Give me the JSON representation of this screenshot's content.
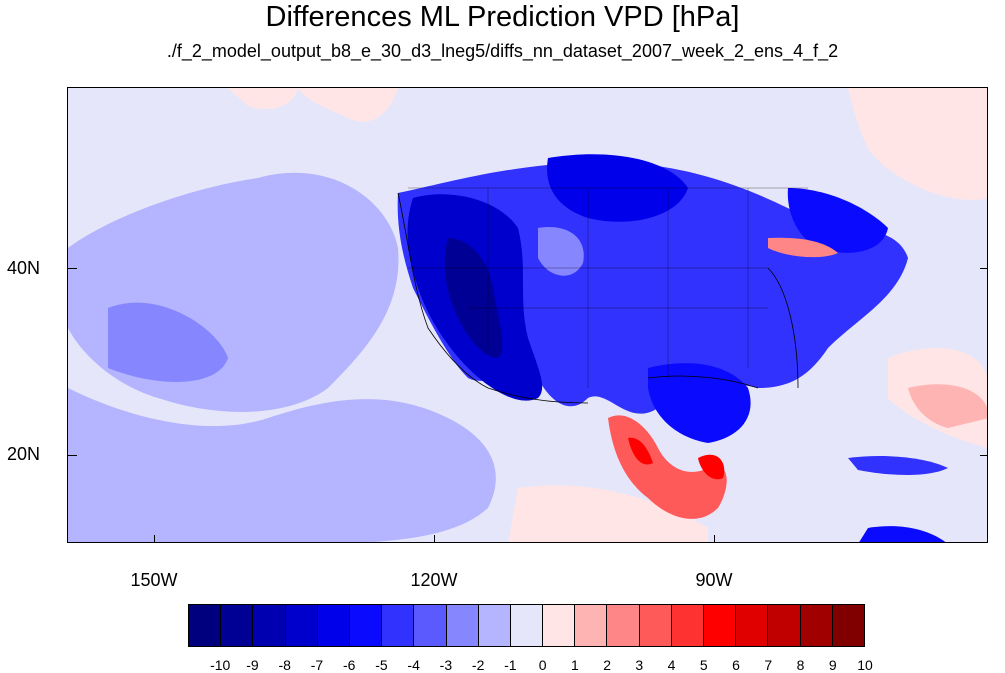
{
  "title": "Differences ML Prediction VPD [hPa]",
  "subtitle": "./f_2_model_output_b8_e_30_d3_lneg5/diffs_nn_dataset_2007_week_2_ens_4_f_2",
  "map": {
    "background_color": "#e6e6fa",
    "x_tick_labels": [
      "150W",
      "120W",
      "90W"
    ],
    "y_tick_labels": [
      "40N",
      "20N"
    ]
  },
  "colorbar": {
    "labels": [
      "-10",
      "-9",
      "-8",
      "-7",
      "-6",
      "-5",
      "-4",
      "-3",
      "-2",
      "-1",
      "0",
      "1",
      "2",
      "3",
      "4",
      "5",
      "6",
      "7",
      "8",
      "9",
      "10"
    ],
    "colors": [
      "#00007f",
      "#000095",
      "#0000b0",
      "#0000cd",
      "#0000ea",
      "#0a0aff",
      "#3232ff",
      "#5a5aff",
      "#8686ff",
      "#b4b4ff",
      "#e6e6fa",
      "#ffe5e5",
      "#ffb4b4",
      "#ff8686",
      "#ff5a5a",
      "#ff3232",
      "#ff0000",
      "#e00000",
      "#c00000",
      "#a00000",
      "#800000"
    ]
  }
}
